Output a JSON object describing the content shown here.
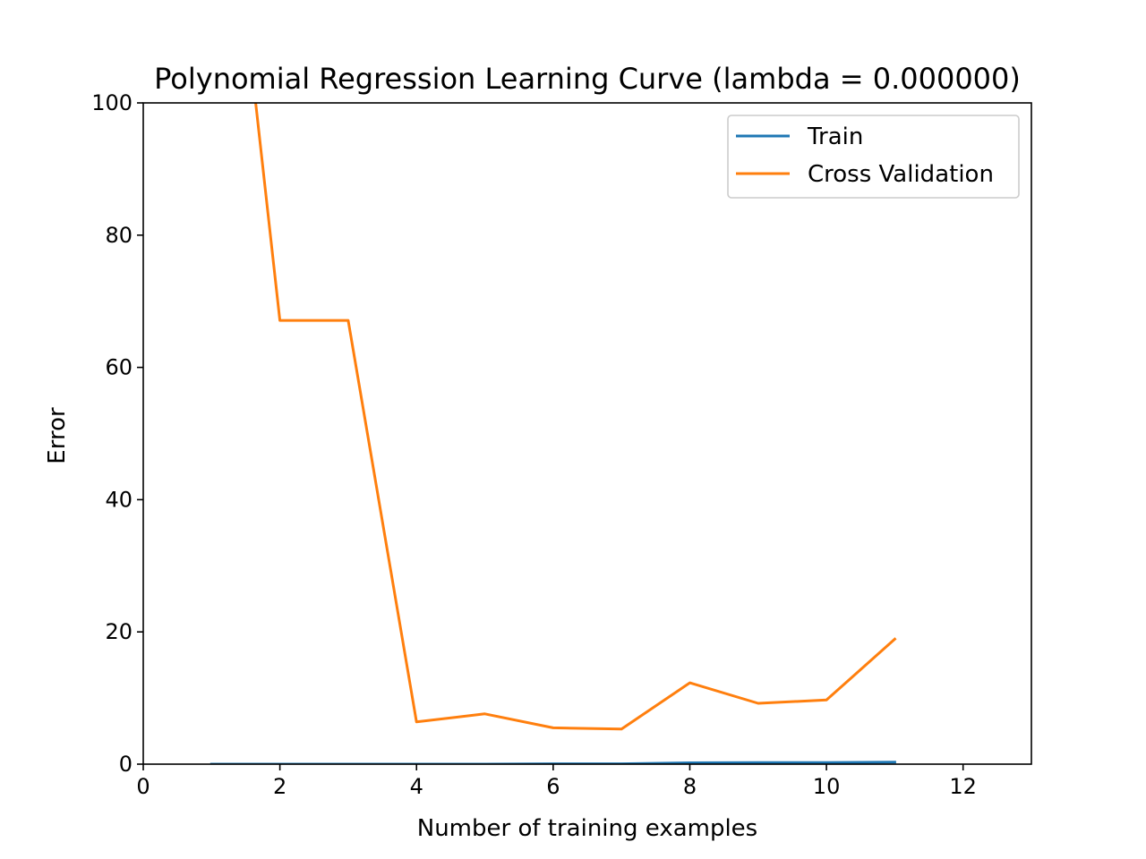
{
  "chart_data": {
    "type": "line",
    "title": "Polynomial Regression Learning Curve (lambda = 0.000000)",
    "xlabel": "Number of training examples",
    "ylabel": "Error",
    "xlim": [
      0,
      13
    ],
    "ylim": [
      0,
      100
    ],
    "xticks": [
      0,
      2,
      4,
      6,
      8,
      10,
      12
    ],
    "yticks": [
      0,
      20,
      40,
      60,
      80,
      100
    ],
    "grid": false,
    "legend_position": "top-right",
    "series": [
      {
        "name": "Train",
        "color": "#1f77b4",
        "x": [
          1,
          2,
          3,
          4,
          5,
          6,
          7,
          8,
          9,
          10,
          11
        ],
        "y": [
          0.0,
          0.0,
          0.0,
          0.0,
          0.0,
          0.05,
          0.05,
          0.2,
          0.25,
          0.25,
          0.3
        ]
      },
      {
        "name": "Cross Validation",
        "color": "#ff7f0e",
        "x": [
          1,
          2,
          3,
          4,
          5,
          6,
          7,
          8,
          9,
          10,
          11
        ],
        "y": [
          160,
          67.1,
          67.1,
          6.4,
          7.6,
          5.5,
          5.3,
          12.3,
          9.2,
          9.7,
          18.9
        ]
      }
    ]
  }
}
